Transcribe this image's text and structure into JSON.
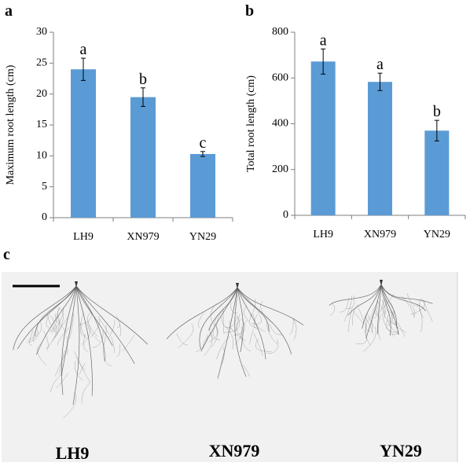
{
  "figure": {
    "panel_a_letter": "a",
    "panel_b_letter": "b",
    "panel_c_letter": "c",
    "bar_color": "#5b9bd5",
    "error_color": "#000000"
  },
  "chart_data": [
    {
      "type": "bar",
      "panel": "a",
      "categories": [
        "LH9",
        "XN979",
        "YN29"
      ],
      "values": [
        24.0,
        19.5,
        10.3
      ],
      "errors": [
        1.8,
        1.5,
        0.4
      ],
      "significance": [
        "a",
        "b",
        "c"
      ],
      "ylabel": "Maximum root length (cm)",
      "xlabel": "",
      "ylim": [
        0,
        30
      ],
      "yticks": [
        0,
        5,
        10,
        15,
        20,
        25,
        30
      ],
      "grid": false,
      "title": ""
    },
    {
      "type": "bar",
      "panel": "b",
      "categories": [
        "LH9",
        "XN979",
        "YN29"
      ],
      "values": [
        672,
        583,
        370
      ],
      "errors": [
        55,
        38,
        45
      ],
      "significance": [
        "a",
        "a",
        "b"
      ],
      "ylabel": "Total root length (cm)",
      "xlabel": "",
      "ylim": [
        0,
        800
      ],
      "yticks": [
        0,
        200,
        400,
        600,
        800
      ],
      "grid": false,
      "title": ""
    }
  ],
  "photo": {
    "labels": [
      "LH9",
      "XN979",
      "YN29"
    ],
    "background_color": "#f1f1f1",
    "root_color": "#555555"
  }
}
